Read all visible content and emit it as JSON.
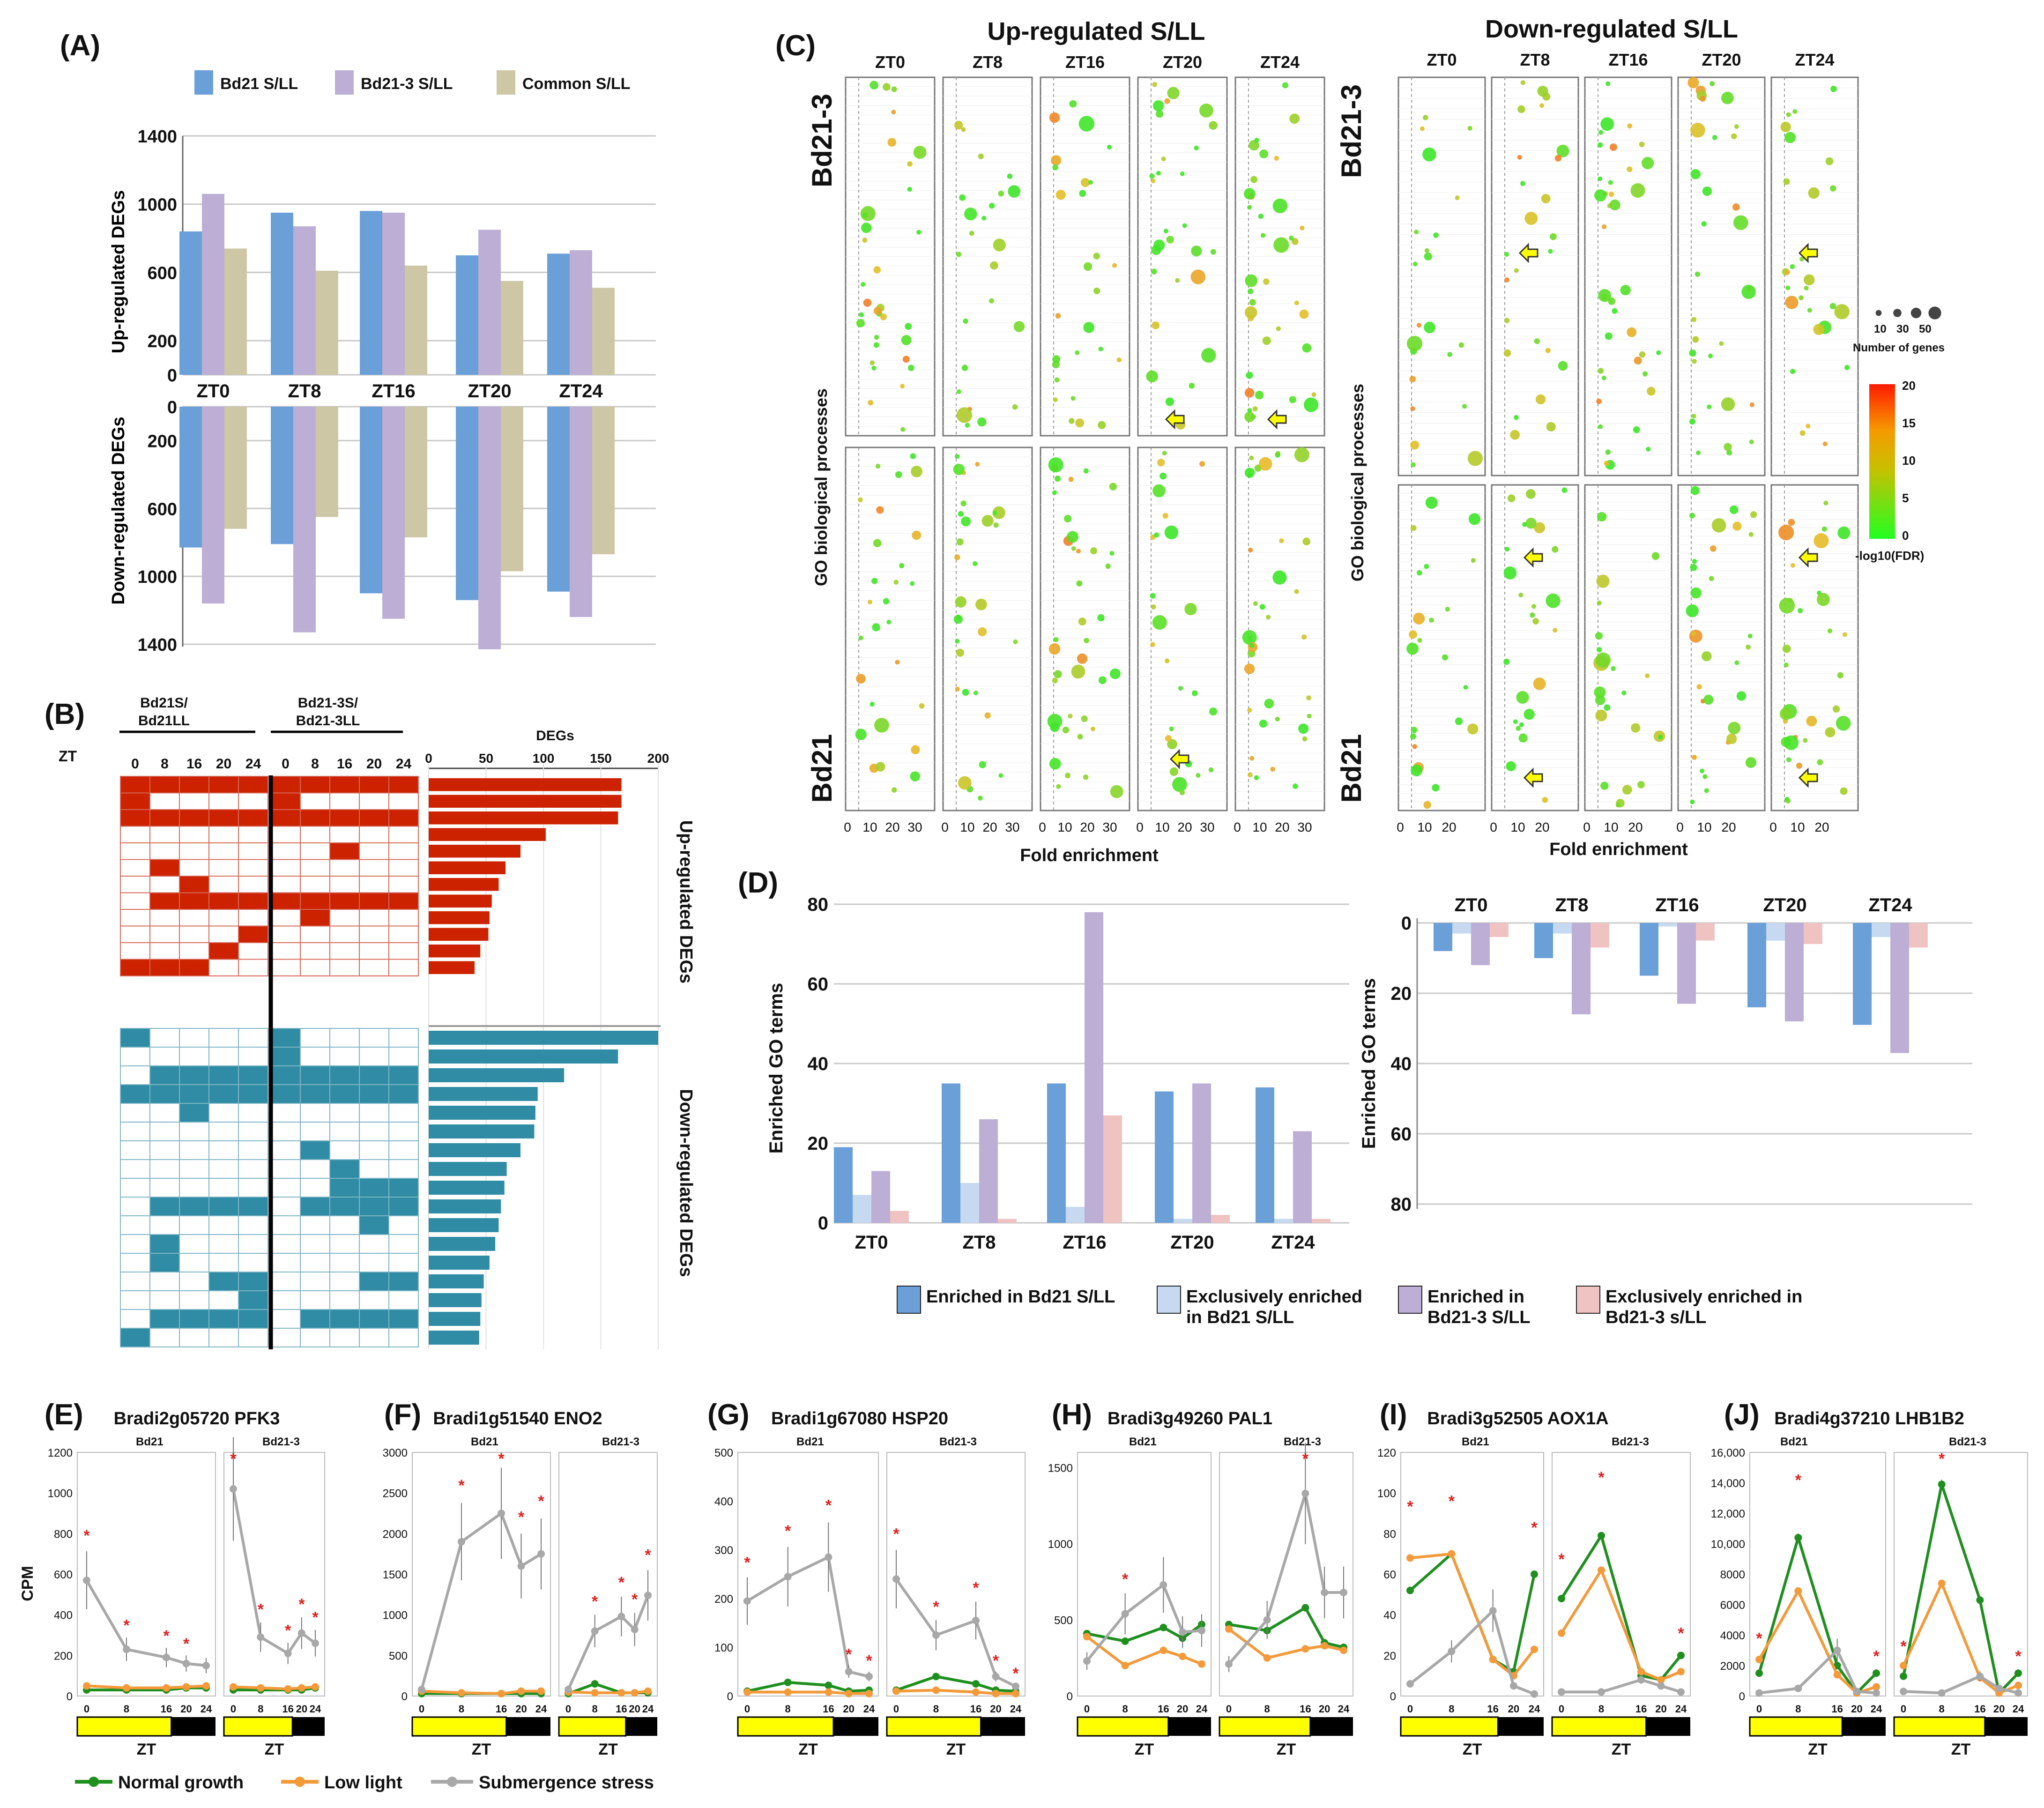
{
  "panel_letters": {
    "A": "(A)",
    "B": "(B)",
    "C": "(C)",
    "D": "(D)",
    "E": "(E)",
    "F": "(F)",
    "G": "(G)",
    "H": "(H)",
    "I": "(I)",
    "J": "(J)"
  },
  "colors": {
    "bd21": "#6a9fd8",
    "bd213": "#bcaed4",
    "common": "#cdc7a5",
    "excl_bd21": "#c6d9f0",
    "excl_bd213": "#f0c3c3",
    "up_red": "#cc2200",
    "down_teal": "#2f8ca4",
    "normal": "#1f8f1f",
    "lowlight": "#f39a3b",
    "submergence": "#a8a8a8",
    "star_red": "#e02020",
    "star_blue": "#3a6fd8",
    "light_bar": "#ffff00",
    "dark_bar": "#000000"
  },
  "panelA": {
    "legend": [
      "Bd21 S/LL",
      "Bd21-3 S/LL",
      "Common S/LL"
    ],
    "zt_labels": [
      "ZT0",
      "ZT8",
      "ZT16",
      "ZT20",
      "ZT24"
    ],
    "up_ylabel": "Up-regulated DEGs",
    "down_ylabel": "Down-regulated DEGs",
    "up_ticks": [
      "1400",
      "1000",
      "600",
      "200",
      "0"
    ],
    "down_ticks": [
      "0",
      "200",
      "600",
      "1000",
      "1400"
    ]
  },
  "panelB": {
    "group1": "Bd21S/\nBd21LL",
    "group2": "Bd21-3S/\nBd21-3LL",
    "zt": "ZT",
    "col_labels": [
      "0",
      "8",
      "16",
      "20",
      "24"
    ],
    "degs_label": "DEGs",
    "degs_ticks": [
      "0",
      "50",
      "100",
      "150",
      "200"
    ],
    "up_label": "Up-regulated DEGs",
    "down_label": "Down-regulated DEGs"
  },
  "panelC": {
    "up_title": "Up-regulated S/LL",
    "down_title": "Down-regulated S/LL",
    "zt": [
      "ZT0",
      "ZT8",
      "ZT16",
      "ZT20",
      "ZT24"
    ],
    "row_top": "Bd21-3",
    "row_bottom": "Bd21",
    "ylabel": "GO biological processes",
    "xlabel": "Fold enrichment",
    "x_ticks": [
      "0",
      "10",
      "20",
      "30"
    ],
    "size_legend_values": [
      "10",
      "30",
      "50"
    ],
    "size_legend_title": "Number of genes",
    "color_ticks": [
      "20",
      "15",
      "10",
      "5",
      "0"
    ],
    "color_title": "-log10(FDR)"
  },
  "panelD": {
    "ylabel": "Enriched GO terms",
    "left_ticks": [
      "80",
      "60",
      "40",
      "20",
      "0"
    ],
    "right_ticks": [
      "0",
      "20",
      "40",
      "60",
      "80"
    ],
    "zt": [
      "ZT0",
      "ZT8",
      "ZT16",
      "ZT20",
      "ZT24"
    ],
    "legend": [
      "Enriched in Bd21 S/LL",
      "Exclusively enriched\nin Bd21 S/LL",
      "Enriched in\nBd21-3 S/LL",
      "Exclusively enriched in\nBd21-3 s/LL"
    ]
  },
  "chart_data": [
    {
      "type": "bar",
      "title": "",
      "categories": [
        "ZT0",
        "ZT8",
        "ZT16",
        "ZT20",
        "ZT24"
      ],
      "ylabel": "Up-regulated DEGs",
      "ylim": [
        0,
        1400
      ],
      "series": [
        {
          "name": "Bd21 S/LL",
          "values": [
            840,
            950,
            960,
            700,
            710
          ]
        },
        {
          "name": "Bd21-3 S/LL",
          "values": [
            1060,
            870,
            950,
            850,
            730
          ]
        },
        {
          "name": "Common S/LL",
          "values": [
            740,
            610,
            640,
            550,
            510
          ]
        }
      ]
    },
    {
      "type": "bar",
      "title": "",
      "categories": [
        "ZT0",
        "ZT8",
        "ZT16",
        "ZT20",
        "ZT24"
      ],
      "ylabel": "Down-regulated DEGs",
      "ylim": [
        0,
        1400
      ],
      "series": [
        {
          "name": "Bd21 S/LL",
          "values": [
            830,
            810,
            1100,
            1140,
            1090
          ]
        },
        {
          "name": "Bd21-3 S/LL",
          "values": [
            1160,
            1330,
            1250,
            1430,
            1240
          ]
        },
        {
          "name": "Common S/LL",
          "values": [
            720,
            650,
            770,
            970,
            870
          ]
        }
      ]
    },
    {
      "type": "bar",
      "title": "",
      "ylabel": "DEGs",
      "xlim": [
        0,
        200
      ],
      "up_values": [
        168,
        168,
        165,
        102,
        80,
        67,
        61,
        55,
        53,
        52,
        45,
        40
      ],
      "down_values": [
        200,
        165,
        118,
        95,
        93,
        92,
        80,
        68,
        66,
        63,
        61,
        58,
        53,
        48,
        46,
        45,
        44
      ]
    },
    {
      "type": "bar",
      "title": "",
      "categories": [
        "ZT0",
        "ZT8",
        "ZT16",
        "ZT20",
        "ZT24"
      ],
      "ylabel": "Enriched GO terms",
      "ylim": [
        0,
        80
      ],
      "series": [
        {
          "name": "Enriched in Bd21 S/LL",
          "values": [
            19,
            35,
            35,
            33,
            34
          ]
        },
        {
          "name": "Exclusively enriched in Bd21 S/LL",
          "values": [
            7,
            10,
            4,
            1,
            1
          ]
        },
        {
          "name": "Enriched in Bd21-3 S/LL",
          "values": [
            13,
            26,
            78,
            35,
            23
          ]
        },
        {
          "name": "Exclusively enriched in Bd21-3 s/LL",
          "values": [
            3,
            1,
            27,
            2,
            1
          ]
        }
      ]
    },
    {
      "type": "bar",
      "title": "",
      "categories": [
        "ZT0",
        "ZT8",
        "ZT16",
        "ZT20",
        "ZT24"
      ],
      "ylabel": "Enriched GO terms",
      "ylim": [
        0,
        80
      ],
      "series": [
        {
          "name": "Enriched in Bd21 S/LL",
          "values": [
            8,
            10,
            15,
            24,
            29
          ]
        },
        {
          "name": "Exclusively enriched in Bd21 S/LL",
          "values": [
            3,
            3,
            1,
            5,
            4
          ]
        },
        {
          "name": "Enriched in Bd21-3 S/LL",
          "values": [
            12,
            26,
            23,
            28,
            37
          ]
        },
        {
          "name": "Exclusively enriched in Bd21-3 s/LL",
          "values": [
            4,
            7,
            5,
            6,
            7
          ]
        }
      ]
    },
    {
      "type": "line",
      "title": "Bradi2g05720 PFK3",
      "ylabel": "CPM",
      "ylim": [
        0,
        1200
      ],
      "x": [
        0,
        8,
        16,
        20,
        24
      ],
      "yticks": [
        "1200",
        "1000",
        "800",
        "600",
        "400",
        "200",
        "0"
      ],
      "series": [
        {
          "name": "Normal growth",
          "bd21": [
            30,
            30,
            30,
            40,
            40
          ],
          "bd213": [
            30,
            30,
            30,
            30,
            40
          ]
        },
        {
          "name": "Low light",
          "bd21": [
            50,
            40,
            40,
            45,
            50
          ],
          "bd213": [
            45,
            40,
            35,
            40,
            45
          ]
        },
        {
          "name": "Submergence stress",
          "bd21": [
            570,
            230,
            190,
            160,
            150
          ],
          "bd213": [
            1020,
            290,
            210,
            310,
            260
          ]
        }
      ]
    },
    {
      "type": "line",
      "title": "Bradi1g51540 ENO2",
      "ylim": [
        0,
        3000
      ],
      "x": [
        0,
        8,
        16,
        20,
        24
      ],
      "yticks": [
        "3000",
        "2500",
        "2000",
        "1500",
        "1000",
        "500",
        "0"
      ],
      "series": [
        {
          "name": "Normal growth",
          "bd21": [
            30,
            30,
            30,
            30,
            30
          ],
          "bd213": [
            30,
            150,
            40,
            40,
            40
          ]
        },
        {
          "name": "Low light",
          "bd21": [
            60,
            40,
            30,
            60,
            60
          ],
          "bd213": [
            50,
            40,
            40,
            40,
            60
          ]
        },
        {
          "name": "Submergence stress",
          "bd21": [
            80,
            1900,
            2250,
            1600,
            1750
          ],
          "bd213": [
            80,
            800,
            980,
            820,
            1240
          ]
        }
      ]
    },
    {
      "type": "line",
      "title": "Bradi1g67080 HSP20",
      "ylim": [
        0,
        500
      ],
      "x": [
        0,
        8,
        16,
        20,
        24
      ],
      "yticks": [
        "500",
        "400",
        "300",
        "200",
        "100",
        "0"
      ],
      "series": [
        {
          "name": "Normal growth",
          "bd21": [
            10,
            28,
            22,
            10,
            12
          ],
          "bd213": [
            12,
            40,
            25,
            12,
            10
          ]
        },
        {
          "name": "Low light",
          "bd21": [
            8,
            8,
            8,
            5,
            5
          ],
          "bd213": [
            10,
            12,
            8,
            5,
            5
          ]
        },
        {
          "name": "Submergence stress",
          "bd21": [
            195,
            245,
            285,
            50,
            40
          ],
          "bd213": [
            240,
            125,
            155,
            40,
            20
          ]
        }
      ]
    },
    {
      "type": "line",
      "title": "Bradi3g49260 PAL1",
      "ylim": [
        0,
        1600
      ],
      "x": [
        0,
        8,
        16,
        20,
        24
      ],
      "yticks": [
        "1500",
        "1000",
        "500",
        "0"
      ],
      "series": [
        {
          "name": "Normal growth",
          "bd21": [
            410,
            360,
            450,
            380,
            470
          ],
          "bd213": [
            470,
            430,
            580,
            350,
            320
          ]
        },
        {
          "name": "Low light",
          "bd21": [
            390,
            200,
            300,
            260,
            210
          ],
          "bd213": [
            440,
            250,
            310,
            330,
            300
          ]
        },
        {
          "name": "Submergence stress",
          "bd21": [
            230,
            540,
            730,
            420,
            430
          ],
          "bd213": [
            210,
            500,
            1330,
            680,
            680
          ]
        }
      ]
    },
    {
      "type": "line",
      "title": "Bradi3g52505 AOX1A",
      "ylim": [
        0,
        120
      ],
      "x": [
        0,
        8,
        16,
        20,
        24
      ],
      "yticks": [
        "120",
        "100",
        "80",
        "60",
        "40",
        "20",
        "0"
      ],
      "series": [
        {
          "name": "Normal growth",
          "bd21": [
            52,
            70,
            18,
            12,
            60
          ],
          "bd213": [
            48,
            79,
            10,
            8,
            20
          ]
        },
        {
          "name": "Low light",
          "bd21": [
            68,
            70,
            18,
            10,
            23
          ],
          "bd213": [
            31,
            62,
            12,
            8,
            12
          ]
        },
        {
          "name": "Submergence stress",
          "bd21": [
            6,
            22,
            42,
            5,
            1
          ],
          "bd213": [
            2,
            2,
            8,
            5,
            2
          ]
        }
      ]
    },
    {
      "type": "line",
      "title": "Bradi4g37210 LHB1B2",
      "ylim": [
        0,
        16000
      ],
      "x": [
        0,
        8,
        16,
        20,
        24
      ],
      "yticks": [
        "16,000",
        "14,000",
        "12,000",
        "10,000",
        "8000",
        "6000",
        "4000",
        "2000",
        "0"
      ],
      "series": [
        {
          "name": "Normal growth",
          "bd21": [
            1500,
            10400,
            2000,
            200,
            1500
          ],
          "bd213": [
            1300,
            13900,
            6300,
            200,
            1500
          ]
        },
        {
          "name": "Low light",
          "bd21": [
            2400,
            6900,
            1400,
            200,
            600
          ],
          "bd213": [
            2000,
            7400,
            1200,
            200,
            700
          ]
        },
        {
          "name": "Submergence stress",
          "bd21": [
            200,
            500,
            3000,
            300,
            200
          ],
          "bd213": [
            300,
            200,
            1300,
            500,
            200
          ]
        }
      ]
    }
  ],
  "linecharts": {
    "strain_left": "Bd21",
    "strain_right": "Bd21-3",
    "xtick_labels": [
      "0",
      "8",
      "16",
      "20",
      "24"
    ],
    "xlabel": "ZT",
    "legend": [
      "Normal growth",
      "Low light",
      "Submergence stress"
    ]
  }
}
